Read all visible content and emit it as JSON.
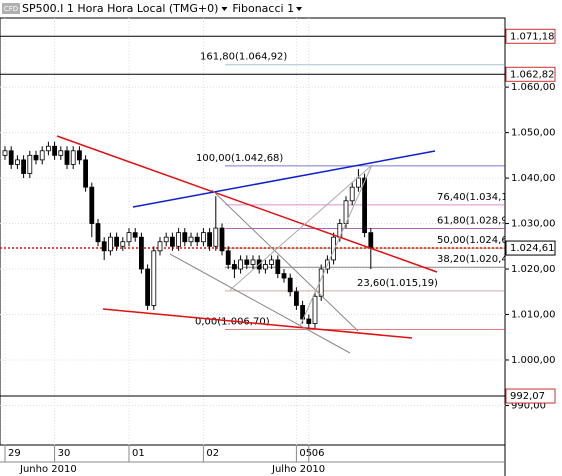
{
  "chart_data": {
    "type": "candlestick",
    "title": "SP500.I 1 Hora Hora Local (TMG+0)",
    "indicator": "Fibonacci 1",
    "icon_text": "CFD",
    "categories": [
      "29",
      null,
      null,
      null,
      null,
      null,
      null,
      null,
      "30",
      null,
      null,
      null,
      null,
      null,
      null,
      null,
      null,
      null,
      null,
      null,
      "01",
      null,
      null,
      null,
      null,
      null,
      null,
      null,
      null,
      null,
      null,
      null,
      "02",
      null,
      null,
      null,
      null,
      null,
      null,
      null,
      null,
      null,
      null,
      null,
      null,
      null,
      null,
      "05",
      null,
      "06",
      null,
      null,
      null,
      null,
      null,
      null,
      null,
      null,
      null,
      null
    ],
    "month_labels": [
      "Junho 2010",
      "Julho 2010"
    ],
    "open": [
      1045,
      1046,
      1043,
      1044,
      1041,
      1045,
      1044,
      1046,
      1047,
      1045,
      1046,
      1043,
      1046,
      1044,
      1038,
      1030,
      1026,
      1024,
      1027,
      1025,
      1026,
      1028,
      1027,
      1020,
      1012,
      1024,
      1026,
      1027,
      1025,
      1028,
      1026,
      1027,
      1026,
      1028,
      1025,
      1029,
      1024,
      1021,
      1020,
      1022,
      1021,
      1022,
      1020,
      1021,
      1022,
      1019,
      1018,
      1015,
      1012,
      1009,
      1008,
      1014,
      1020,
      1022,
      1027,
      1030,
      1035,
      1038,
      1040,
      1028
    ],
    "high": [
      1047,
      1047,
      1045,
      1045,
      1046,
      1046,
      1047,
      1048,
      1048,
      1047,
      1047,
      1047,
      1047,
      1045,
      1039,
      1031,
      1027,
      1028,
      1028,
      1027,
      1029,
      1029,
      1028,
      1021,
      1025,
      1027,
      1028,
      1028,
      1029,
      1029,
      1028,
      1028,
      1029,
      1029,
      1036,
      1030,
      1025,
      1022,
      1023,
      1023,
      1023,
      1023,
      1022,
      1023,
      1023,
      1020,
      1019,
      1016,
      1013,
      1010,
      1015,
      1021,
      1023,
      1028,
      1031,
      1036,
      1039,
      1042,
      1041,
      1029
    ],
    "low": [
      1044,
      1042,
      1042,
      1040,
      1040,
      1043,
      1043,
      1045,
      1044,
      1044,
      1042,
      1042,
      1043,
      1037,
      1027,
      1025,
      1022,
      1023,
      1024,
      1024,
      1025,
      1026,
      1019,
      1011,
      1011,
      1023,
      1025,
      1024,
      1024,
      1025,
      1025,
      1025,
      1025,
      1024,
      1024,
      1023,
      1020,
      1018,
      1019,
      1020,
      1020,
      1019,
      1019,
      1020,
      1018,
      1017,
      1014,
      1011,
      1008,
      1007,
      1007,
      1013,
      1019,
      1021,
      1026,
      1029,
      1034,
      1037,
      1027,
      1020
    ],
    "close": [
      1046,
      1043,
      1044,
      1041,
      1045,
      1044,
      1046,
      1047,
      1045,
      1046,
      1043,
      1046,
      1044,
      1038,
      1030,
      1026,
      1024,
      1027,
      1025,
      1026,
      1028,
      1027,
      1020,
      1012,
      1024,
      1026,
      1027,
      1025,
      1028,
      1026,
      1027,
      1026,
      1028,
      1025,
      1029,
      1024,
      1021,
      1020,
      1022,
      1021,
      1022,
      1020,
      1021,
      1022,
      1019,
      1018,
      1015,
      1012,
      1009,
      1008,
      1014,
      1020,
      1022,
      1027,
      1030,
      1035,
      1038,
      1040,
      1028,
      1024.61
    ],
    "up_color": "#ffffff",
    "down_color": "#000000",
    "ylim": [
      981.3,
      1075.2
    ],
    "yticks": [
      {
        "value": 990,
        "label": "990,00"
      },
      {
        "value": 1000,
        "label": "1.000,00"
      },
      {
        "value": 1010,
        "label": "1.010,00"
      },
      {
        "value": 1020,
        "label": "1.020,00"
      },
      {
        "value": 1030,
        "label": "1.030,00"
      },
      {
        "value": 1040,
        "label": "1.040,00"
      },
      {
        "value": 1050,
        "label": "1.050,00"
      },
      {
        "value": 1060,
        "label": "1.060,00"
      }
    ],
    "grid": true,
    "fibonacci": [
      {
        "label": "161,80(1.064,92)",
        "value": 1064.92,
        "color": "#6a9fb0"
      },
      {
        "label": "100,00(1.042,68)",
        "value": 1042.68,
        "color": "#1a22b8"
      },
      {
        "label": "76,40(1.034,1",
        "value": 1034.1,
        "color": "#c040c0"
      },
      {
        "label": "61,80(1.028,9",
        "value": 1028.9,
        "color": "#800080"
      },
      {
        "label": "50,00(1.024,6",
        "value": 1024.6,
        "color": "#4f6a00"
      },
      {
        "label": "38,20(1.020,4",
        "value": 1020.4,
        "color": "#333333"
      },
      {
        "label": "23,60(1.015,19)",
        "value": 1015.19,
        "color": "#b07070"
      },
      {
        "label": "0,00(1.006,70)",
        "value": 1006.7,
        "color": "#dd2020"
      }
    ],
    "price_lines": [
      {
        "label": "1.071,18",
        "value": 1071.18,
        "color": "#d03030"
      },
      {
        "label": "1.062,82",
        "value": 1062.82,
        "color": "#d03030"
      },
      {
        "label": "1.024,61",
        "value": 1024.61,
        "color": "#000000"
      },
      {
        "label": "992,07",
        "value": 992.07,
        "color": "#d03030"
      }
    ]
  }
}
